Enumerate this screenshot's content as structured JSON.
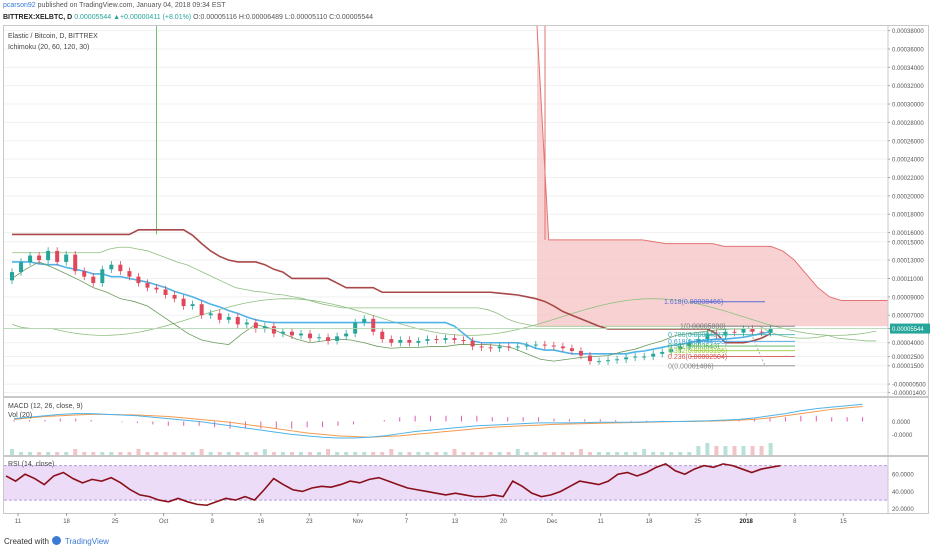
{
  "header": {
    "user": "pcarson92",
    "published_text": "published on TradingView.com, January 04, 2018 09:34 EST",
    "symbol": "BITTREX:XELBTC, D",
    "change": "0.00005544 ▲+0.00000411 (+8.01%)",
    "ohlc": "O:0.00005116 H:0.00006489 L:0.00005110 C:0.00005544"
  },
  "main_legend": {
    "title": "Elastic / Bitcoin, D, BITTREX",
    "indicator": "Ichimoku (20, 60, 120, 30)"
  },
  "macd_legend": {
    "label": "MACD (12, 26, close, 9)",
    "vol": "Vol (20)"
  },
  "rsi_legend": {
    "label": "RSI (14, close)"
  },
  "footer": {
    "created_with": "Created with",
    "brand": "TradingView"
  },
  "colors": {
    "up": "#26a69a",
    "down": "#e0475b",
    "tenkan": "#4fb3e8",
    "kijun": "#a84848",
    "span": "#8fbf7f",
    "cloud": "#f5c3c3",
    "macd": "#4fb3e8",
    "signal": "#f39a4f",
    "hist": "#e05bb5",
    "rsi": "#8b0f1a",
    "rsi_band": "#ecdcf8"
  },
  "chart_data": [
    {
      "type": "line",
      "name": "price",
      "ylim": [
        -1.8e-05,
        0.000385
      ],
      "y_ticks": [
        "0.00038000",
        "0.00036000",
        "0.00034000",
        "0.00032000",
        "0.00030000",
        "0.00028000",
        "0.00026000",
        "0.00024000",
        "0.00022000",
        "0.00020000",
        "0.00018000",
        "0.00016000",
        "0.00015000",
        "0.00013000",
        "0.00011000",
        "0.00009000",
        "0.00007000",
        "0.00005544",
        "0.00004000",
        "0.00002500",
        "0.00001500",
        "-0.00000500",
        "-0.00001400"
      ],
      "y_tick_values": [
        0.00038,
        0.00036,
        0.00034,
        0.00032,
        0.0003,
        0.00028,
        0.00026,
        0.00024,
        0.00022,
        0.0002,
        0.00018,
        0.00016,
        0.00015,
        0.00013,
        0.00011,
        9e-05,
        7e-05,
        5.544e-05,
        4e-05,
        2.5e-05,
        1.5e-05,
        -5e-06,
        -1.4e-05
      ],
      "x_labels": [
        "11",
        "18",
        "25",
        "Oct",
        "9",
        "16",
        "23",
        "Nov",
        "7",
        "13",
        "20",
        "Dec",
        "11",
        "18",
        "25",
        "2018",
        "8",
        "15"
      ],
      "last_price_label": "0.00005544",
      "candles": {
        "open": [
          0.000108,
          0.000117,
          0.000128,
          0.000135,
          0.00013,
          0.00014,
          0.000128,
          0.000136,
          0.000118,
          0.000112,
          0.000105,
          0.00012,
          0.000125,
          0.000118,
          0.000112,
          0.000105,
          0.0001,
          9.8e-05,
          9.2e-05,
          8.8e-05,
          8e-05,
          8.2e-05,
          7e-05,
          7.2e-05,
          6.5e-05,
          6.8e-05,
          6e-05,
          6.2e-05,
          5.5e-05,
          5.8e-05,
          5e-05,
          5.2e-05,
          4.8e-05,
          5e-05,
          4.5e-05,
          4.6e-05,
          4.2e-05,
          4.7e-05,
          5e-05,
          6.2e-05,
          6.6e-05,
          5.2e-05,
          4.4e-05,
          4e-05,
          4.3e-05,
          4e-05,
          4.2e-05,
          4.4e-05,
          4.3e-05,
          4.5e-05,
          4.3e-05,
          4.2e-05,
          3.6e-05,
          3.5e-05,
          3.4e-05,
          3.6e-05,
          3.5e-05,
          3.6e-05,
          3.7e-05,
          3.8e-05,
          3.7e-05,
          3.6e-05,
          3.4e-05,
          3.1e-05,
          2.6e-05,
          2e-05,
          2e-05,
          2.1e-05,
          2.2e-05,
          2.4e-05,
          2.5e-05,
          2.5e-05,
          2.8e-05,
          3e-05,
          3.3e-05,
          3.6e-05,
          4e-05,
          4.4e-05,
          5e-05,
          4.8e-05,
          5.2e-05,
          5.1e-05,
          5.5e-05,
          5.2e-05,
          5.1e-05
        ],
        "close": [
          0.000117,
          0.000128,
          0.000135,
          0.00013,
          0.00014,
          0.000128,
          0.000136,
          0.000118,
          0.000112,
          0.000105,
          0.00012,
          0.000125,
          0.000118,
          0.000112,
          0.000105,
          0.0001,
          9.8e-05,
          9.2e-05,
          8.8e-05,
          8e-05,
          8.2e-05,
          7e-05,
          7.2e-05,
          6.5e-05,
          6.8e-05,
          6e-05,
          6.2e-05,
          5.5e-05,
          5.8e-05,
          5e-05,
          5.2e-05,
          4.8e-05,
          5e-05,
          4.5e-05,
          4.6e-05,
          4.2e-05,
          4.7e-05,
          5e-05,
          6.2e-05,
          6.6e-05,
          5.2e-05,
          4.4e-05,
          4e-05,
          4.3e-05,
          4e-05,
          4.2e-05,
          4.4e-05,
          4.3e-05,
          4.5e-05,
          4.3e-05,
          4.2e-05,
          3.6e-05,
          3.5e-05,
          3.4e-05,
          3.6e-05,
          3.5e-05,
          3.6e-05,
          3.7e-05,
          3.8e-05,
          3.7e-05,
          3.6e-05,
          3.4e-05,
          3.1e-05,
          2.6e-05,
          2e-05,
          2e-05,
          2.1e-05,
          2.2e-05,
          2.4e-05,
          2.5e-05,
          2.5e-05,
          2.8e-05,
          3e-05,
          3.3e-05,
          3.6e-05,
          4e-05,
          4.4e-05,
          5e-05,
          4.8e-05,
          5.2e-05,
          5.1e-05,
          5.5e-05,
          5.2e-05,
          5.1e-05,
          5.5e-05
        ]
      },
      "tenkan": [
        0.000128,
        0.000128,
        0.000128,
        0.000126,
        0.000125,
        0.000125,
        0.000122,
        0.00012,
        0.000118,
        0.000115,
        0.000115,
        0.000112,
        0.000112,
        0.00011,
        0.000108,
        0.000106,
        0.000103,
        0.0001,
        9.6e-05,
        9.3e-05,
        9e-05,
        8.6e-05,
        8.2e-05,
        7.9e-05,
        7.5e-05,
        7.2e-05,
        6.8e-05,
        6.5e-05,
        6.3e-05,
        6.2e-05,
        6.2e-05,
        6.2e-05,
        6.2e-05,
        6.2e-05,
        6.2e-05,
        6.2e-05,
        6.2e-05,
        6.2e-05,
        6.2e-05,
        6.2e-05,
        6.2e-05,
        6.2e-05,
        6.2e-05,
        6.2e-05,
        6.2e-05,
        6.2e-05,
        6.2e-05,
        6.2e-05,
        6.2e-05,
        5.8e-05,
        5e-05,
        4.2e-05,
        4e-05,
        4e-05,
        4e-05,
        4e-05,
        4e-05,
        3.8e-05,
        3.4e-05,
        3.2e-05,
        3.2e-05,
        3e-05,
        2.8e-05,
        2.8e-05,
        2.8e-05,
        2.8e-05,
        2.8e-05,
        2.8e-05,
        2.8e-05,
        3e-05,
        3.1e-05,
        3.3e-05,
        3.5e-05,
        3.7e-05,
        3.8e-05,
        4e-05,
        4.2e-05,
        4.3e-05,
        4.4e-05,
        4.4e-05,
        4.5e-05,
        4.6e-05,
        4.8e-05,
        5e-05,
        5.2e-05
      ],
      "kijun": [
        0.000158,
        0.000158,
        0.000158,
        0.000158,
        0.000158,
        0.000158,
        0.000158,
        0.000158,
        0.000158,
        0.000158,
        0.000158,
        0.000158,
        0.000158,
        0.000158,
        0.000163,
        0.000163,
        0.000163,
        0.000163,
        0.000163,
        0.000163,
        0.000157,
        0.000148,
        0.00014,
        0.000134,
        0.00013,
        0.000128,
        0.000128,
        0.000128,
        0.000125,
        0.00012,
        0.000117,
        0.00011,
        0.00011,
        0.00011,
        0.00011,
        0.00011,
        0.000105,
        0.0001,
        0.0001,
        0.0001,
        0.0001,
        9.5e-05,
        9.5e-05,
        9.5e-05,
        9.5e-05,
        9.5e-05,
        9.5e-05,
        9.5e-05,
        9.5e-05,
        9.5e-05,
        9.5e-05,
        9.5e-05,
        9.5e-05,
        9.5e-05,
        9.4e-05,
        9.3e-05,
        9.2e-05,
        9e-05,
        8.8e-05,
        8.5e-05,
        8e-05,
        7.4e-05,
        7e-05,
        6.6e-05,
        6.2e-05,
        5.8e-05,
        5.5e-05,
        5.5e-05,
        5.5e-05,
        5.5e-05,
        5.5e-05,
        5.5e-05,
        5.5e-05,
        5.5e-05,
        5.5e-05,
        5.5e-05,
        5.5e-05,
        5.5e-05,
        5e-05,
        4e-05,
        4e-05,
        4e-05,
        4.2e-05,
        4.5e-05,
        5e-05
      ],
      "lagging": [
        0.00011,
        0.00012,
        0.000128,
        0.000122,
        0.000115,
        0.000108,
        0.0001,
        9.5e-05,
        8.8e-05,
        8.5e-05,
        8e-05,
        7e-05,
        6e-05,
        5e-05,
        4.3e-05,
        4e-05,
        3.8e-05,
        5e-05,
        6e-05,
        5.6e-05,
        5e-05,
        4.4e-05,
        4e-05,
        4.2e-05,
        4.4e-05,
        4.3e-05,
        4e-05,
        3.6e-05,
        3.4e-05,
        3.5e-05,
        3.5e-05,
        3.6e-05,
        3.6e-05,
        3.8e-05,
        3.8e-05,
        3.8e-05,
        3.7e-05,
        3.4e-05,
        2.8e-05,
        2.2e-05,
        2e-05,
        2.2e-05,
        2.4e-05,
        2.5e-05,
        2.6e-05,
        3e-05,
        3.3e-05,
        3.8e-05,
        4.2e-05,
        4.8e-05,
        5e-05,
        5.2e-05,
        5.4e-05,
        5.5e-05,
        5.5e-05
      ],
      "span_a": [
        0.000138,
        0.000138,
        0.000138,
        0.000138,
        0.000138,
        0.000138,
        0.000138,
        0.000138,
        0.000138,
        0.000138,
        0.000142,
        0.000144,
        0.000144,
        0.000142,
        0.00014,
        0.000136,
        0.000132,
        0.000128,
        0.000125,
        0.00012,
        0.000115,
        0.00011,
        0.000105,
        0.0001,
        9.8e-05,
        9.6e-05,
        9.5e-05,
        9.3e-05,
        9.2e-05,
        9e-05,
        8.8e-05,
        8.5e-05,
        8.2e-05,
        8e-05,
        7.8e-05,
        7.8e-05,
        7.8e-05,
        7.8e-05,
        7.8e-05,
        7.8e-05,
        7.8e-05,
        7.8e-05,
        7.8e-05,
        7.8e-05,
        7.8e-05,
        7.8e-05,
        7.8e-05,
        7.8e-05,
        7.8e-05,
        7.6e-05,
        7.2e-05,
        6.6e-05,
        6.2e-05,
        6e-05,
        5.8e-05,
        5.8e-05,
        5.8e-05,
        5.8e-05,
        5.8e-05,
        5.8e-05,
        5.8e-05,
        5.8e-05,
        5.8e-05,
        5.8e-05,
        5.8e-05,
        5.8e-05,
        5.8e-05,
        5.8e-05,
        5.8e-05,
        5.8e-05,
        5.8e-05,
        5.8e-05,
        5.8e-05,
        5.8e-05,
        5.8e-05,
        5.8e-05,
        5.8e-05,
        5.8e-05,
        5.2e-05,
        4.8e-05,
        4.6e-05,
        4.5e-05,
        4.5e-05,
        4.6e-05,
        4.8e-05,
        4.5e-05,
        4.4e-05,
        4.3e-05,
        4.2e-05,
        4.2e-05
      ],
      "span_b": [
        6e-05,
        6e-05,
        6.2e-05,
        6.5e-05,
        6.8e-05,
        6.8e-05,
        6.8e-05,
        6.8e-05,
        6.8e-05,
        6.8e-05,
        6.8e-05,
        6.8e-05,
        6.8e-05,
        6.8e-05,
        6.8e-05,
        6.8e-05,
        6.8e-05,
        6.8e-05,
        6.8e-05,
        6.8e-05,
        6.8e-05,
        6.8e-05,
        6.8e-05,
        6.8e-05,
        6.8e-05,
        6.8e-05,
        6.8e-05,
        6.8e-05,
        6.8e-05,
        6.8e-05,
        6.8e-05,
        6.8e-05,
        6.8e-05,
        6.8e-05,
        6.8e-05,
        6.8e-05,
        6.8e-05,
        6.8e-05,
        6.8e-05,
        6.8e-05,
        6.8e-05,
        6.8e-05,
        6.8e-05,
        6.8e-05,
        6.8e-05,
        6.8e-05,
        6.8e-05,
        6.8e-05,
        6.8e-05,
        6.8e-05,
        6.8e-05,
        6.8e-05,
        6.8e-05,
        6.8e-05,
        6.8e-05,
        6.8e-05,
        6.8e-05,
        6.8e-05,
        6.8e-05,
        6.8e-05,
        6.8e-05,
        6.8e-05,
        6.8e-05,
        6.8e-05,
        6.8e-05,
        6.8e-05,
        6.8e-05,
        6.8e-05,
        6.8e-05,
        6.8e-05,
        6.8e-05,
        6.8e-05,
        6.8e-05,
        6.8e-05,
        6.8e-05,
        6.8e-05,
        6.8e-05,
        6.8e-05,
        6.8e-05,
        6.8e-05,
        6.8e-05,
        6.8e-05,
        6.8e-05,
        6.8e-05,
        6.8e-05,
        6.8e-05,
        6.8e-05,
        6.8e-05,
        6.8e-05,
        6.8e-05
      ],
      "cloud_top": 0.000385,
      "cloud_shape": [
        0.000385,
        0.000152,
        0.000152,
        0.000152,
        0.000152,
        0.000152,
        0.000152,
        0.000152,
        0.000152,
        0.000152,
        0.00015,
        0.000148,
        0.000148,
        0.000148,
        0.000148,
        0.000148,
        0.000145,
        0.000145,
        0.000145,
        0.000145,
        0.000145,
        0.00014,
        0.00013,
        0.000115,
        0.0001,
        9e-05,
        8.6e-05,
        8.6e-05,
        8.6e-05,
        8.6e-05,
        8.6e-05
      ],
      "fib_levels": [
        {
          "label": "1.618(0.00008466)",
          "value": 8.466e-05,
          "color": "#5a6bd6"
        },
        {
          "label": "1(0.00005800)",
          "value": 5.8e-05,
          "color": "#777777"
        },
        {
          "label": "0.786(0.00004877)",
          "value": 4.877e-05,
          "color": "#3ab0b0"
        },
        {
          "label": "0.618(0.00004153)",
          "value": 4.153e-05,
          "color": "#3a9fe0"
        },
        {
          "label": "0.5(0.00003643)",
          "value": 3.643e-05,
          "color": "#4caf50"
        },
        {
          "label": "0.382(0.00003136)",
          "value": 3.136e-05,
          "color": "#9acd32"
        },
        {
          "label": "0.236(0.00002504)",
          "value": 2.504e-05,
          "color": "#d9534f"
        },
        {
          "label": "0(0.00001486)",
          "value": 1.486e-05,
          "color": "#888888"
        }
      ]
    },
    {
      "type": "line",
      "name": "macd",
      "y_ticks": [
        "0.0000",
        "-0.0000"
      ],
      "macd": [
        0.4,
        0.6,
        0.8,
        1.0,
        1.1,
        1.1,
        1.0,
        0.9,
        0.8,
        0.6,
        0.4,
        0.2,
        0.0,
        -0.3,
        -0.6,
        -0.9,
        -1.2,
        -1.5,
        -1.8,
        -2.0,
        -2.2,
        -2.3,
        -2.3,
        -2.2,
        -2.0,
        -1.7,
        -1.4,
        -1.2,
        -1.0,
        -0.8,
        -0.6,
        -0.5,
        -0.4,
        -0.3,
        -0.2,
        -0.2,
        -0.2,
        -0.15,
        -0.1,
        -0.1,
        -0.1,
        -0.05,
        0.0,
        0.0,
        0.05,
        0.1,
        0.2,
        0.3,
        0.5,
        0.8,
        1.1,
        1.5,
        1.8,
        2.0,
        2.2,
        2.4
      ],
      "signal": [
        0.3,
        0.5,
        0.7,
        0.8,
        0.9,
        1.0,
        1.0,
        0.95,
        0.9,
        0.8,
        0.7,
        0.5,
        0.3,
        0.1,
        -0.1,
        -0.4,
        -0.7,
        -1.0,
        -1.3,
        -1.6,
        -1.8,
        -2.0,
        -2.1,
        -2.2,
        -2.1,
        -2.0,
        -1.8,
        -1.6,
        -1.4,
        -1.2,
        -1.0,
        -0.8,
        -0.7,
        -0.6,
        -0.5,
        -0.4,
        -0.35,
        -0.3,
        -0.25,
        -0.2,
        -0.15,
        -0.1,
        -0.05,
        0.0,
        0.0,
        0.05,
        0.1,
        0.2,
        0.3,
        0.5,
        0.8,
        1.1,
        1.4,
        1.7,
        1.9,
        2.1
      ],
      "hist": [
        0.1,
        0.1,
        0.1,
        0.2,
        0.2,
        0.1,
        0.0,
        -0.05,
        -0.1,
        -0.2,
        -0.3,
        -0.3,
        -0.3,
        -0.4,
        -0.5,
        -0.5,
        -0.5,
        -0.5,
        -0.5,
        -0.4,
        -0.4,
        -0.3,
        -0.2,
        0.0,
        0.1,
        0.3,
        0.4,
        0.4,
        0.4,
        0.4,
        0.4,
        0.3,
        0.3,
        0.3,
        0.3,
        0.2,
        0.15,
        0.15,
        0.15,
        0.1,
        0.05,
        0.05,
        0.05,
        0.0,
        0.05,
        0.05,
        0.1,
        0.1,
        0.2,
        0.3,
        0.3,
        0.4,
        0.4,
        0.3,
        0.3,
        0.3
      ],
      "ylim": [
        -3.0,
        3.0
      ]
    },
    {
      "type": "line",
      "name": "rsi",
      "ylim": [
        15,
        80
      ],
      "y_ticks": [
        "60.0000",
        "40.0000",
        "20.0000"
      ],
      "y_tick_values": [
        60,
        40,
        20
      ],
      "band": [
        30,
        70
      ],
      "values": [
        58,
        52,
        60,
        55,
        48,
        58,
        62,
        55,
        50,
        54,
        52,
        56,
        50,
        42,
        36,
        34,
        30,
        28,
        32,
        28,
        25,
        24,
        28,
        32,
        30,
        34,
        30,
        42,
        55,
        48,
        42,
        40,
        44,
        46,
        45,
        48,
        52,
        50,
        54,
        56,
        52,
        48,
        44,
        42,
        40,
        38,
        36,
        38,
        36,
        34,
        34,
        36,
        34,
        52,
        46,
        38,
        34,
        36,
        40,
        46,
        52,
        50,
        48,
        52,
        60,
        62,
        58,
        62,
        68,
        72,
        64,
        60,
        66,
        70,
        68,
        72,
        70,
        66,
        62,
        66,
        68,
        70
      ]
    }
  ]
}
